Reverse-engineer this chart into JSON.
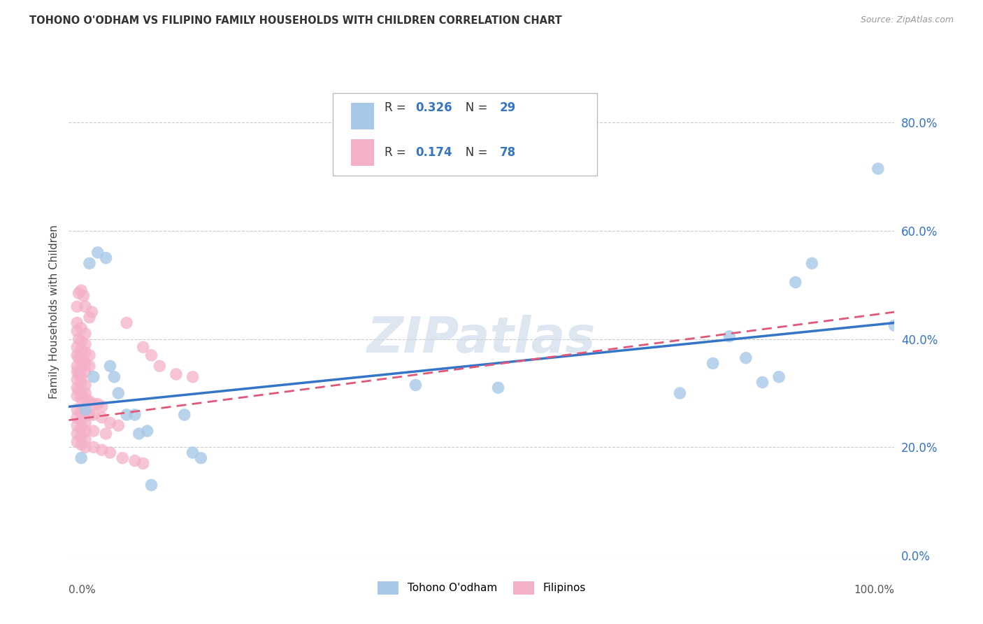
{
  "title": "TOHONO O'ODHAM VS FILIPINO FAMILY HOUSEHOLDS WITH CHILDREN CORRELATION CHART",
  "source": "Source: ZipAtlas.com",
  "ylabel": "Family Households with Children",
  "blue_color": "#a8c8e8",
  "pink_color": "#f4b0c8",
  "blue_line_color": "#3575c8",
  "pink_line_color": "#e05878",
  "text_color": "#333333",
  "legend_R_blue": "0.326",
  "legend_N_blue": "29",
  "legend_R_pink": "0.174",
  "legend_N_pink": "78",
  "blue_scatter_x": [
    1.5,
    2.5,
    3.5,
    4.5,
    5.0,
    5.5,
    6.0,
    7.0,
    8.0,
    9.5,
    10.0,
    14.0,
    15.0,
    16.0,
    42.0,
    52.0,
    74.0,
    78.0,
    80.0,
    82.0,
    84.0,
    86.0,
    88.0,
    90.0,
    98.0,
    100.0,
    3.0,
    8.5,
    2.0
  ],
  "blue_scatter_y": [
    18.0,
    54.0,
    56.0,
    55.0,
    35.0,
    33.0,
    30.0,
    26.0,
    26.0,
    23.0,
    13.0,
    26.0,
    19.0,
    18.0,
    31.5,
    31.0,
    30.0,
    35.5,
    40.5,
    36.5,
    32.0,
    33.0,
    50.5,
    54.0,
    71.5,
    42.5,
    33.0,
    22.5,
    27.0
  ],
  "pink_scatter_x": [
    1.0,
    1.2,
    1.5,
    1.8,
    2.0,
    1.0,
    1.5,
    2.0,
    2.5,
    2.8,
    1.0,
    1.2,
    1.5,
    2.0,
    1.0,
    1.5,
    2.0,
    2.5,
    1.0,
    1.2,
    1.5,
    2.0,
    2.5,
    1.0,
    1.5,
    2.0,
    1.0,
    1.2,
    1.5,
    1.0,
    1.5,
    2.0,
    1.0,
    1.2,
    1.5,
    2.0,
    1.0,
    1.5,
    2.0,
    2.5,
    3.0,
    3.5,
    4.0,
    1.0,
    1.5,
    2.0,
    2.5,
    3.0,
    4.0,
    1.0,
    1.5,
    2.0,
    5.0,
    6.0,
    1.0,
    1.5,
    2.0,
    3.0,
    4.5,
    1.0,
    1.5,
    2.0,
    7.0,
    9.0,
    10.0,
    11.0,
    13.0,
    15.0,
    1.0,
    1.5,
    2.0,
    3.0,
    4.0,
    5.0,
    6.5,
    8.0,
    9.0
  ],
  "pink_scatter_y": [
    46.0,
    48.5,
    49.0,
    48.0,
    46.0,
    43.0,
    42.0,
    41.0,
    44.0,
    45.0,
    41.5,
    40.0,
    39.5,
    39.0,
    38.5,
    38.0,
    37.5,
    37.0,
    37.0,
    36.5,
    36.0,
    35.5,
    35.0,
    35.0,
    34.5,
    34.0,
    34.0,
    33.5,
    33.0,
    32.5,
    32.0,
    31.5,
    31.0,
    30.5,
    30.0,
    30.0,
    29.5,
    29.0,
    29.0,
    28.5,
    28.0,
    28.0,
    27.5,
    27.0,
    26.5,
    26.5,
    26.0,
    26.0,
    25.5,
    25.5,
    25.0,
    24.5,
    24.5,
    24.0,
    24.0,
    23.5,
    23.0,
    23.0,
    22.5,
    22.5,
    22.0,
    21.5,
    43.0,
    38.5,
    37.0,
    35.0,
    33.5,
    33.0,
    21.0,
    20.5,
    20.0,
    20.0,
    19.5,
    19.0,
    18.0,
    17.5,
    17.0
  ],
  "xlim": [
    0,
    100
  ],
  "ylim": [
    0,
    90
  ],
  "yticks": [
    0,
    20,
    40,
    60,
    80
  ],
  "ytick_labels": [
    "0.0%",
    "20.0%",
    "40.0%",
    "60.0%",
    "80.0%"
  ],
  "grid_color": "#cccccc",
  "watermark": "ZIPatlas",
  "bg_color": "#ffffff",
  "blue_line_intercept": 27.5,
  "blue_line_slope": 0.155,
  "pink_line_intercept": 25.0,
  "pink_line_slope": 0.2
}
